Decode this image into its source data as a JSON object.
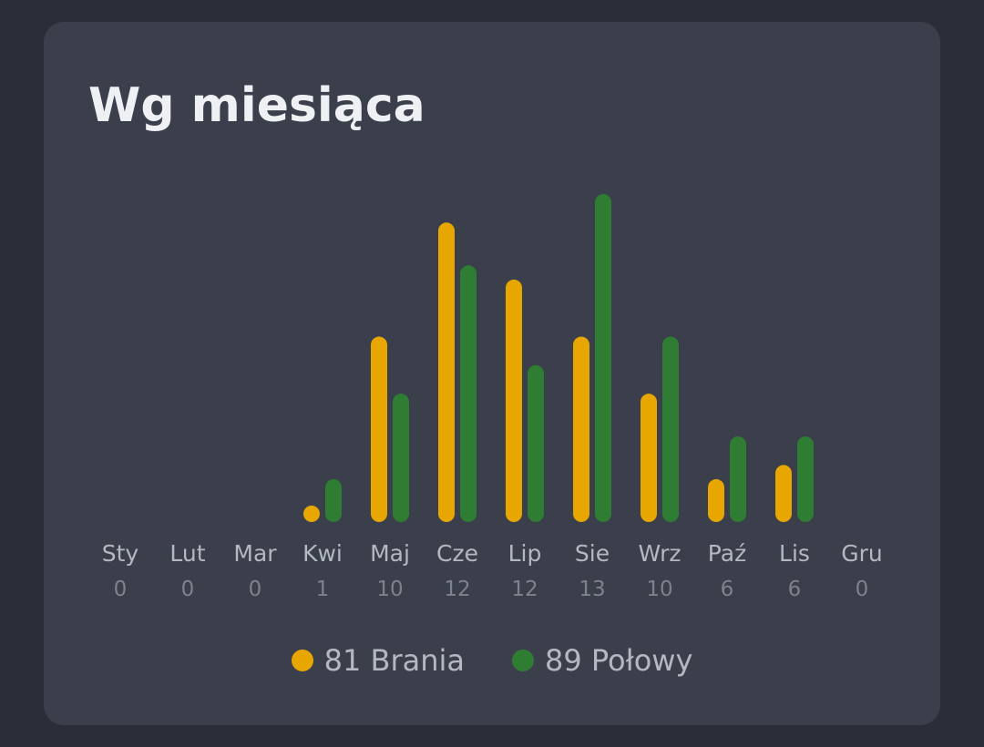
{
  "colors": {
    "background": "#2a2e38",
    "card": "#3a3f4b",
    "brania": "#e8a700",
    "polowy": "#2e7d32"
  },
  "title": "Wg miesiąca",
  "legend": [
    {
      "text": "81 Brania",
      "color_key": "brania"
    },
    {
      "text": "89 Połowy",
      "color_key": "polowy"
    }
  ],
  "chart_data": {
    "type": "bar",
    "title": "Wg miesiąca",
    "categories": [
      "Sty",
      "Lut",
      "Mar",
      "Kwi",
      "Maj",
      "Cze",
      "Lip",
      "Sie",
      "Wrz",
      "Paź",
      "Lis",
      "Gru"
    ],
    "counts": [
      "0",
      "0",
      "0",
      "1",
      "10",
      "12",
      "12",
      "13",
      "10",
      "6",
      "6",
      "0"
    ],
    "series": [
      {
        "name": "81 Brania",
        "color": "#e8a700",
        "values": [
          0,
          0,
          0,
          1,
          13,
          21,
          17,
          13,
          9,
          3,
          4,
          0
        ]
      },
      {
        "name": "89 Połowy",
        "color": "#2e7d32",
        "values": [
          0,
          0,
          0,
          3,
          9,
          18,
          11,
          23,
          13,
          6,
          6,
          0
        ]
      }
    ],
    "ylim": [
      0,
      23
    ],
    "grid": false,
    "legend_position": "bottom"
  }
}
